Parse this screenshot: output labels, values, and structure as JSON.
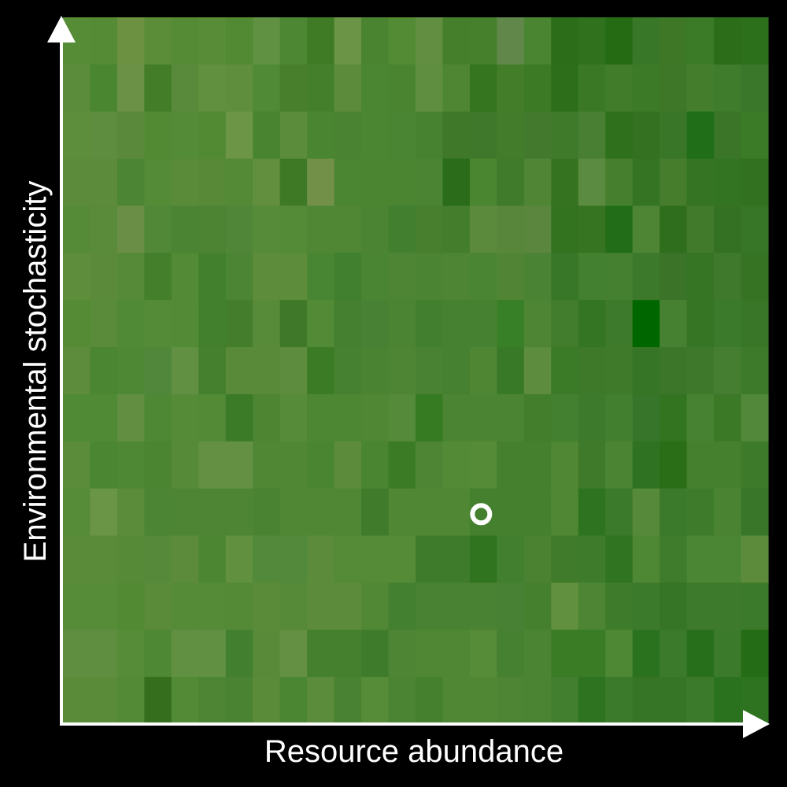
{
  "chart_data": {
    "type": "heatmap",
    "title": "",
    "xlabel": "Resource abundance",
    "ylabel": "Environmental stochasticity",
    "grid": false,
    "colors": {
      "background": "#000000",
      "axis": "#ffffff",
      "marker": "#ffffff"
    },
    "columns": 26,
    "rows": 15,
    "cells": [
      [
        "#568c36",
        "#558b35",
        "#6b9141",
        "#5b8c38",
        "#558b35",
        "#598c37",
        "#528a34",
        "#609041",
        "#4d8734",
        "#3f7b24",
        "#6b9446",
        "#4a8430",
        "#538b35",
        "#628e42",
        "#467f2c",
        "#46802d",
        "#61884a",
        "#4a8532",
        "#2c6d1a",
        "#2f711d",
        "#256b14",
        "#387727",
        "#3e7726",
        "#3b7b27",
        "#2c6d1a",
        "#2d701c"
      ],
      [
        "#5b8c3b",
        "#4a8530",
        "#6b9146",
        "#437d28",
        "#59893a",
        "#61903e",
        "#5f8e3d",
        "#518a37",
        "#477f2c",
        "#44802c",
        "#5c8c3b",
        "#4b8633",
        "#4a8431",
        "#608e41",
        "#4f8634",
        "#35751f",
        "#447d2a",
        "#3c7a26",
        "#2d6e1b",
        "#3a7826",
        "#417c2b",
        "#3c7a27",
        "#3e7727",
        "#447e2c",
        "#3f7c2b",
        "#3a772a"
      ],
      [
        "#5d8e3c",
        "#5e8d3f",
        "#5b893b",
        "#528a34",
        "#538b36",
        "#528a33",
        "#6c9546",
        "#498430",
        "#5b8c3b",
        "#4a8532",
        "#4a8432",
        "#4b8633",
        "#498533",
        "#478230",
        "#40782a",
        "#40782b",
        "#437d2c",
        "#42792c",
        "#3f7a2a",
        "#497f33",
        "#2f701d",
        "#347221",
        "#3a7627",
        "#206e17",
        "#3b7628",
        "#3b7a27"
      ],
      [
        "#5c8c3b",
        "#5b8b3b",
        "#4c8533",
        "#538b36",
        "#598b39",
        "#578937",
        "#548a36",
        "#628f3e",
        "#3e7a25",
        "#739049",
        "#4b8632",
        "#4b8531",
        "#4b8532",
        "#4b8533",
        "#2a6c1a",
        "#4a8530",
        "#3f7b2a",
        "#4f8535",
        "#367321",
        "#5a8b40",
        "#46802f",
        "#357423",
        "#457d2d",
        "#347422",
        "#327421",
        "#327120"
      ],
      [
        "#558a36",
        "#5a8b3a",
        "#6b8e46",
        "#518838",
        "#4b8433",
        "#4c8433",
        "#508638",
        "#568b39",
        "#538b36",
        "#4f8735",
        "#4f8735",
        "#4b8433",
        "#428030",
        "#477f2e",
        "#447d2c",
        "#5b8a3c",
        "#58873b",
        "#5a863d",
        "#337320",
        "#367421",
        "#226e18",
        "#4d8534",
        "#2f6e1c",
        "#417a2b",
        "#357123",
        "#387627"
      ],
      [
        "#5e8d3c",
        "#5b8b3a",
        "#578a38",
        "#447f2b",
        "#528a35",
        "#42802d",
        "#4c8534",
        "#5d8c3b",
        "#5d8c3b",
        "#498633",
        "#40802e",
        "#4a8533",
        "#4d8535",
        "#4b8433",
        "#4d8535",
        "#4a8533",
        "#518535",
        "#4a8333",
        "#387728",
        "#438030",
        "#458031",
        "#3d792a",
        "#3b7328",
        "#367524",
        "#3f7a2c",
        "#367323"
      ],
      [
        "#558b35",
        "#5a8b3a",
        "#508a36",
        "#538b36",
        "#538a36",
        "#42802d",
        "#447e2d",
        "#588b39",
        "#3e7828",
        "#528a35",
        "#458031",
        "#488133",
        "#4b8433",
        "#428030",
        "#468131",
        "#468131",
        "#388027",
        "#4d8535",
        "#427d2d",
        "#347523",
        "#3e7a2b",
        "#006600",
        "#468131",
        "#367524",
        "#3c7a2b",
        "#397628"
      ],
      [
        "#5c8c3c",
        "#4b8632",
        "#4f8835",
        "#50873a",
        "#619043",
        "#44802e",
        "#588a39",
        "#588a39",
        "#5e8c3f",
        "#3b7b25",
        "#468131",
        "#4a8432",
        "#4d8534",
        "#498232",
        "#468131",
        "#4f8634",
        "#387927",
        "#5e8c3f",
        "#3b7a27",
        "#3d7928",
        "#3e7a2a",
        "#377526",
        "#3b7629",
        "#3e782a",
        "#457e30",
        "#3d7a2a"
      ],
      [
        "#508a34",
        "#508a34",
        "#628e42",
        "#4e8834",
        "#558a37",
        "#528a35",
        "#3b7b27",
        "#4d8532",
        "#568b39",
        "#4e8734",
        "#4e8734",
        "#4f8734",
        "#548a39",
        "#367a22",
        "#4b8533",
        "#4b8533",
        "#4b8533",
        "#427e2c",
        "#43802f",
        "#3e7a2b",
        "#428030",
        "#36752a",
        "#337421",
        "#478233",
        "#3c7927",
        "#518839"
      ],
      [
        "#5a8c39",
        "#4b8632",
        "#4f8835",
        "#4b8532",
        "#568a39",
        "#639043",
        "#639043",
        "#4f8734",
        "#4f8734",
        "#4a8532",
        "#5c8c3b",
        "#4a8532",
        "#3b7b26",
        "#4d8534",
        "#528a35",
        "#558a37",
        "#45802f",
        "#45802f",
        "#4f8734",
        "#3f7a2b",
        "#4b8433",
        "#2f7221",
        "#2b6e18",
        "#45802f",
        "#45802f",
        "#3d7a2a"
      ],
      [
        "#568b37",
        "#6a9547",
        "#5a8c39",
        "#4c8634",
        "#4d8535",
        "#4d8535",
        "#4d8535",
        "#4a8432",
        "#4f8734",
        "#4f8734",
        "#4f8734",
        "#3f7b2a",
        "#4f8734",
        "#4f8734",
        "#4f8734",
        "#45802f",
        "#45802f",
        "#45802f",
        "#4f8734",
        "#2e7420",
        "#3c7a2b",
        "#57893a",
        "#3b7a2a",
        "#3e7c2c",
        "#4a8433",
        "#397629"
      ],
      [
        "#5a8b39",
        "#5a8b39",
        "#568a37",
        "#56893a",
        "#5c8c3b",
        "#4d8632",
        "#61903e",
        "#52893a",
        "#52893a",
        "#5c8c3b",
        "#558a37",
        "#558a37",
        "#558a37",
        "#3e7c2b",
        "#3e7c2b",
        "#307420",
        "#42802f",
        "#4a8232",
        "#3f7b2a",
        "#3e7c2c",
        "#307320",
        "#4e8834",
        "#3f7c2b",
        "#4b8634",
        "#4b8634",
        "#5c8c3b"
      ],
      [
        "#568b37",
        "#568b37",
        "#528a34",
        "#5a8b39",
        "#558a37",
        "#558a37",
        "#548a36",
        "#5a8b39",
        "#578a38",
        "#5b8b3b",
        "#5b8b3b",
        "#518835",
        "#43802f",
        "#4a8233",
        "#4a8233",
        "#498232",
        "#488133",
        "#45802f",
        "#61903e",
        "#4d8535",
        "#3e7c2c",
        "#3c7a2b",
        "#367526",
        "#3e7a2b",
        "#3e7a2b",
        "#3c7a2b"
      ],
      [
        "#608e41",
        "#608e41",
        "#568b37",
        "#4e8834",
        "#619043",
        "#619043",
        "#42802f",
        "#598a39",
        "#639043",
        "#44802e",
        "#44802e",
        "#3e7c2c",
        "#4d8534",
        "#4f8734",
        "#4f8734",
        "#568b37",
        "#468131",
        "#4b8433",
        "#3a7b26",
        "#3a7b26",
        "#4e8834",
        "#2b721f",
        "#3c7a2b",
        "#286f1c",
        "#3c7a2b",
        "#256c16"
      ],
      [
        "#598b39",
        "#598b39",
        "#538a36",
        "#356f1e",
        "#528a35",
        "#4d8535",
        "#4a8432",
        "#5a8b39",
        "#4b8633",
        "#5b8c3b",
        "#498232",
        "#568b37",
        "#4b8433",
        "#44802e",
        "#4f8734",
        "#4f8734",
        "#4d8535",
        "#4b8433",
        "#42802f",
        "#2e7420",
        "#3b7a2a",
        "#367526",
        "#367526",
        "#3c7a2b",
        "#2b721f",
        "#2e7420"
      ]
    ],
    "marker": {
      "x": 0.593,
      "y": 0.297,
      "shape": "ring"
    },
    "axis_arrows": true
  }
}
